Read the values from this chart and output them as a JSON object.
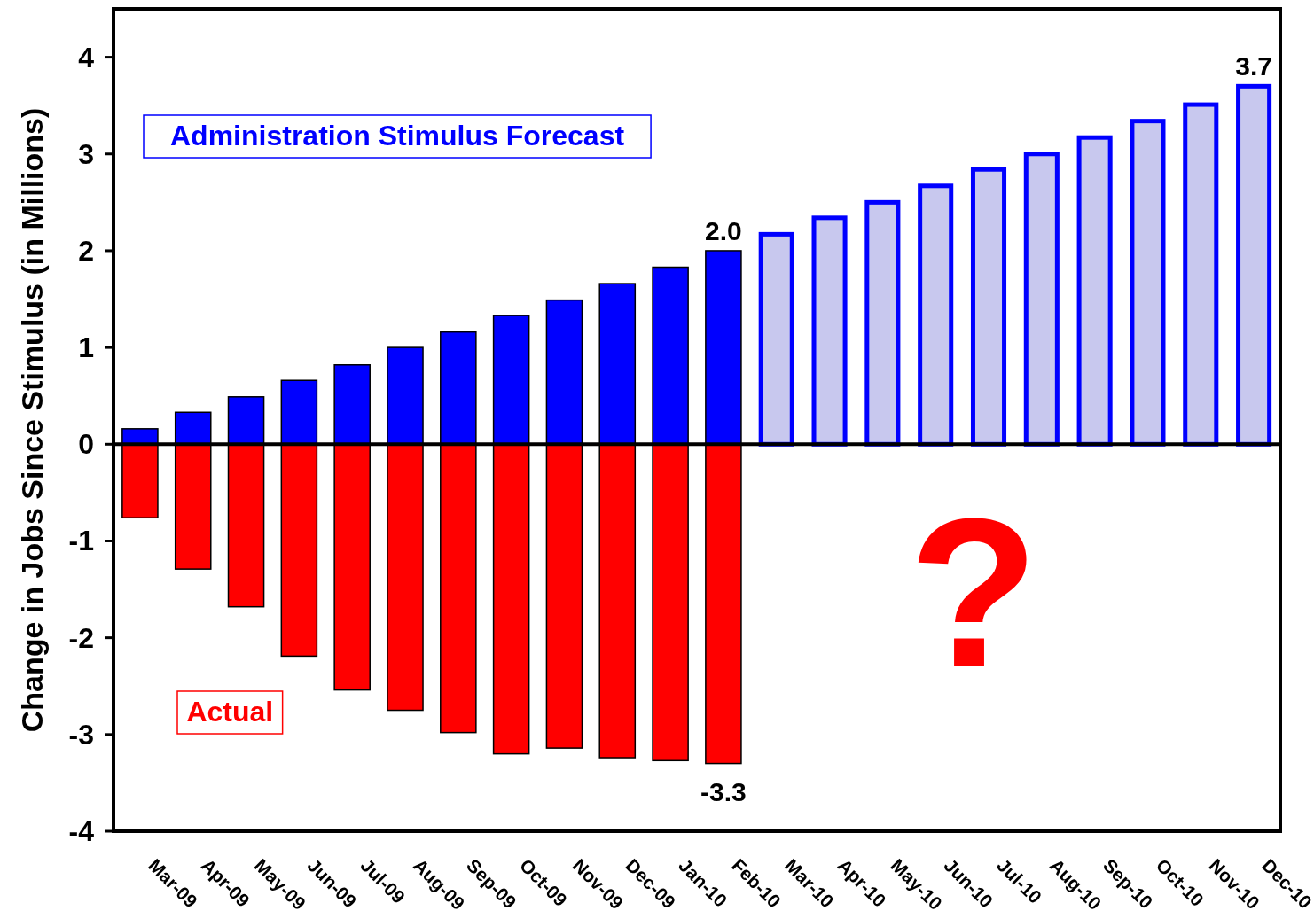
{
  "chart_data": {
    "type": "bar",
    "stacked": true,
    "ylabel": "Change in Jobs Since Stimulus (in Millions)",
    "categories": [
      "Mar-09",
      "Apr-09",
      "May-09",
      "Jun-09",
      "Jul-09",
      "Aug-09",
      "Sep-09",
      "Oct-09",
      "Nov-09",
      "Dec-09",
      "Jan-10",
      "Feb-10",
      "Mar-10",
      "Apr-10",
      "May-10",
      "Jun-10",
      "Jul-10",
      "Aug-10",
      "Sep-10",
      "Oct-10",
      "Nov-10",
      "Dec-10"
    ],
    "series": [
      {
        "name": "Administration Stimulus Forecast",
        "color": "#0000ff",
        "colors": [
          "#0000ff",
          "#0000ff",
          "#0000ff",
          "#0000ff",
          "#0000ff",
          "#0000ff",
          "#0000ff",
          "#0000ff",
          "#0000ff",
          "#0000ff",
          "#0000ff",
          "#0000ff",
          "#c8c8ee",
          "#c8c8ee",
          "#c8c8ee",
          "#c8c8ee",
          "#c8c8ee",
          "#c8c8ee",
          "#c8c8ee",
          "#c8c8ee",
          "#c8c8ee",
          "#c8c8ee"
        ],
        "values": [
          0.16,
          0.33,
          0.49,
          0.66,
          0.82,
          1.0,
          1.16,
          1.33,
          1.49,
          1.66,
          1.83,
          2.0,
          2.17,
          2.34,
          2.5,
          2.67,
          2.84,
          3.0,
          3.17,
          3.34,
          3.51,
          3.7
        ],
        "value_labels": [
          null,
          null,
          null,
          null,
          null,
          null,
          null,
          null,
          null,
          null,
          null,
          "2.0",
          null,
          null,
          null,
          null,
          null,
          null,
          null,
          null,
          null,
          "3.7"
        ]
      },
      {
        "name": "Actual",
        "color": "#ff0000",
        "values": [
          -0.76,
          -1.29,
          -1.68,
          -2.19,
          -2.54,
          -2.75,
          -2.98,
          -3.2,
          -3.14,
          -3.24,
          -3.27,
          -3.3,
          null,
          null,
          null,
          null,
          null,
          null,
          null,
          null,
          null,
          null
        ],
        "value_labels": [
          null,
          null,
          null,
          null,
          null,
          null,
          null,
          null,
          null,
          null,
          null,
          "-3.3",
          null,
          null,
          null,
          null,
          null,
          null,
          null,
          null,
          null,
          null
        ]
      }
    ],
    "ylim": [
      -4,
      4.5
    ],
    "yticks": [
      -4,
      -3,
      -2,
      -1,
      0,
      1,
      2,
      3,
      4
    ],
    "annotations": [
      "?"
    ]
  }
}
